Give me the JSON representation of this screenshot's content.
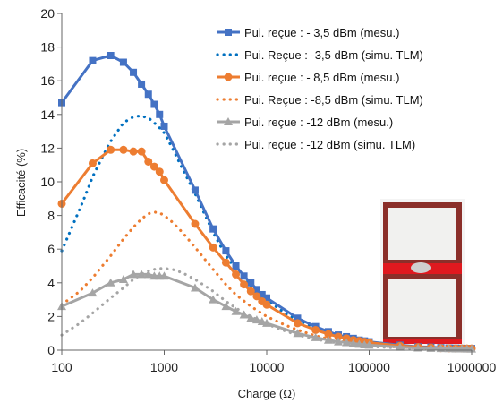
{
  "chart_data": {
    "type": "line",
    "xlabel": "Charge (Ω)",
    "ylabel": "Efficacité (%)",
    "xscale": "log",
    "xlim": [
      100,
      1000000
    ],
    "ylim": [
      0,
      20
    ],
    "x_ticks": [
      100,
      1000,
      10000,
      100000,
      1000000
    ],
    "x_tick_labels": [
      "100",
      "1000",
      "10000",
      "100000",
      "1000000"
    ],
    "y_ticks": [
      0,
      2,
      4,
      6,
      8,
      10,
      12,
      14,
      16,
      18,
      20
    ],
    "y_tick_labels": [
      "0",
      "2",
      "4",
      "6",
      "8",
      "10",
      "12",
      "14",
      "16",
      "18",
      "20"
    ],
    "legend_position": "top-right",
    "inset_image": "device-photo",
    "series": [
      {
        "name": "Pui. reçue : - 3,5 dBm (mesu.)",
        "color": "#4472c4",
        "style": "solid",
        "marker": "square",
        "x": [
          100,
          200,
          300,
          400,
          500,
          600,
          700,
          800,
          900,
          1000,
          2000,
          3000,
          4000,
          5000,
          6000,
          7000,
          8000,
          9000,
          10000,
          20000,
          30000,
          40000,
          50000,
          60000,
          70000,
          80000,
          90000,
          100000,
          200000,
          300000,
          400000,
          500000,
          600000,
          700000,
          800000,
          900000,
          1000000
        ],
        "y": [
          14.7,
          17.2,
          17.5,
          17.1,
          16.5,
          15.8,
          15.2,
          14.6,
          14.0,
          13.3,
          9.5,
          7.2,
          5.9,
          5.0,
          4.4,
          4.0,
          3.6,
          3.3,
          3.1,
          1.9,
          1.4,
          1.1,
          0.9,
          0.8,
          0.7,
          0.6,
          0.55,
          0.5,
          0.3,
          0.2,
          0.18,
          0.15,
          0.13,
          0.12,
          0.11,
          0.1,
          0.1
        ]
      },
      {
        "name": "Pui. Reçue : -3,5 dBm (simu. TLM)",
        "color": "#0070c0",
        "style": "dotted",
        "marker": "none",
        "x": [
          100,
          130,
          160,
          200,
          250,
          300,
          350,
          400,
          450,
          500,
          550,
          600,
          700,
          800,
          900,
          1000,
          1200,
          1500,
          2000,
          3000,
          4000,
          5000,
          7000,
          10000,
          15000,
          20000,
          30000,
          50000,
          70000,
          100000,
          200000,
          500000,
          1000000
        ],
        "y": [
          5.9,
          7.5,
          8.8,
          10.3,
          11.5,
          12.4,
          13.0,
          13.5,
          13.7,
          13.85,
          13.9,
          13.9,
          13.8,
          13.5,
          13.2,
          12.9,
          12.0,
          10.8,
          9.3,
          7.0,
          5.6,
          4.8,
          3.8,
          3.0,
          2.2,
          1.8,
          1.3,
          0.85,
          0.6,
          0.45,
          0.25,
          0.12,
          0.1
        ]
      },
      {
        "name": "Pui. reçue : - 8,5 dBm (mesu.)",
        "color": "#ed7d31",
        "style": "solid",
        "marker": "circle",
        "x": [
          100,
          200,
          300,
          400,
          500,
          600,
          700,
          800,
          900,
          1000,
          2000,
          3000,
          4000,
          5000,
          6000,
          7000,
          8000,
          9000,
          10000,
          20000,
          30000,
          40000,
          50000,
          60000,
          70000,
          80000,
          90000,
          100000,
          200000,
          300000,
          400000,
          500000,
          600000,
          700000,
          800000,
          900000,
          1000000
        ],
        "y": [
          8.7,
          11.1,
          11.9,
          11.9,
          11.8,
          11.8,
          11.2,
          10.9,
          10.6,
          10.1,
          7.5,
          6.1,
          5.2,
          4.5,
          3.9,
          3.5,
          3.2,
          2.9,
          2.7,
          1.6,
          1.2,
          0.95,
          0.8,
          0.7,
          0.6,
          0.55,
          0.5,
          0.45,
          0.25,
          0.18,
          0.15,
          0.12,
          0.11,
          0.1,
          0.1,
          0.1,
          0.1
        ]
      },
      {
        "name": "Pui. Reçue : -8,5 dBm (simu. TLM)",
        "color": "#ed7d31",
        "style": "dotted",
        "marker": "none",
        "x": [
          100,
          150,
          200,
          300,
          400,
          500,
          600,
          700,
          800,
          900,
          1000,
          1200,
          1500,
          2000,
          3000,
          4000,
          5000,
          7000,
          10000,
          15000,
          20000,
          30000,
          50000,
          100000,
          200000,
          500000,
          1000000
        ],
        "y": [
          2.7,
          3.5,
          4.3,
          5.6,
          6.6,
          7.3,
          7.8,
          8.1,
          8.2,
          8.15,
          8.0,
          7.6,
          7.0,
          6.1,
          4.8,
          3.9,
          3.3,
          2.6,
          2.0,
          1.5,
          1.2,
          0.85,
          0.55,
          0.3,
          0.17,
          0.09,
          0.07
        ]
      },
      {
        "name": "Pui. reçue : -12 dBm (mesu.)",
        "color": "#a5a5a5",
        "style": "solid",
        "marker": "triangle",
        "x": [
          100,
          200,
          300,
          400,
          500,
          600,
          700,
          800,
          900,
          1000,
          2000,
          3000,
          4000,
          5000,
          6000,
          7000,
          8000,
          9000,
          10000,
          20000,
          30000,
          40000,
          50000,
          60000,
          70000,
          80000,
          90000,
          100000,
          200000,
          300000,
          400000,
          500000,
          600000,
          700000,
          800000,
          900000,
          1000000
        ],
        "y": [
          2.6,
          3.4,
          4.0,
          4.2,
          4.5,
          4.5,
          4.5,
          4.4,
          4.4,
          4.4,
          3.7,
          3.0,
          2.6,
          2.3,
          2.1,
          1.9,
          1.8,
          1.7,
          1.6,
          1.0,
          0.75,
          0.6,
          0.5,
          0.45,
          0.4,
          0.35,
          0.32,
          0.3,
          0.18,
          0.13,
          0.11,
          0.1,
          0.09,
          0.08,
          0.08,
          0.07,
          0.07
        ]
      },
      {
        "name": "Pui. reçue : -12 dBm (simu. TLM)",
        "color": "#a5a5a5",
        "style": "dotted",
        "marker": "none",
        "x": [
          100,
          150,
          200,
          300,
          400,
          500,
          600,
          700,
          800,
          900,
          1000,
          1200,
          1500,
          2000,
          3000,
          4000,
          5000,
          7000,
          10000,
          15000,
          20000,
          30000,
          50000,
          100000,
          200000,
          500000,
          1000000
        ],
        "y": [
          0.9,
          1.6,
          2.2,
          3.1,
          3.7,
          4.2,
          4.5,
          4.7,
          4.8,
          4.85,
          4.85,
          4.8,
          4.6,
          4.2,
          3.5,
          2.9,
          2.5,
          2.0,
          1.55,
          1.15,
          0.9,
          0.65,
          0.42,
          0.22,
          0.12,
          0.06,
          0.05
        ]
      }
    ]
  }
}
